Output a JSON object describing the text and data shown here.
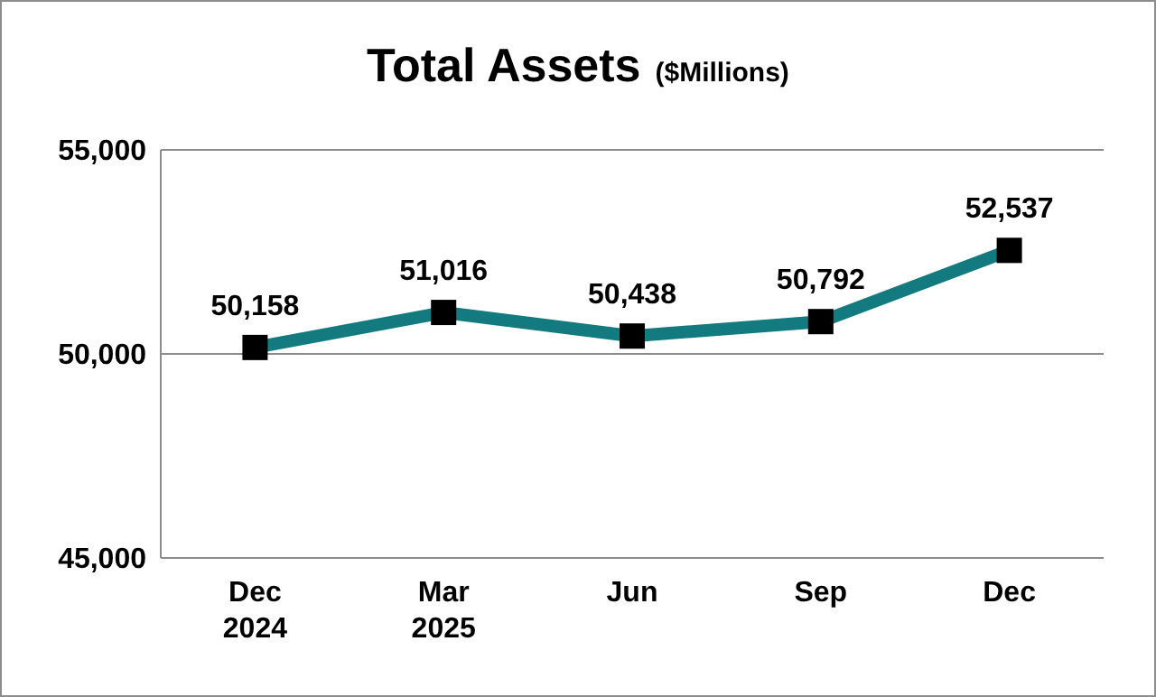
{
  "chart_data": {
    "type": "line",
    "title": "Total Assets",
    "subtitle": "($Millions)",
    "categories": [
      "Dec\n2024",
      "Mar\n2025",
      "Jun",
      "Sep",
      "Dec"
    ],
    "series": [
      {
        "color": "#137a7f",
        "values": [
          50158,
          51016,
          50438,
          50792,
          52537
        ],
        "value_labels": [
          "50,158",
          "51,016",
          "50,438",
          "50,792",
          "52,537"
        ]
      }
    ],
    "ylim": [
      45000,
      55000
    ],
    "yticks": [
      {
        "value": 45000,
        "label": "45,000"
      },
      {
        "value": 50000,
        "label": "50,000"
      },
      {
        "value": 55000,
        "label": "55,000"
      }
    ],
    "grid": "y",
    "marker": "square",
    "line_style": "solid"
  }
}
